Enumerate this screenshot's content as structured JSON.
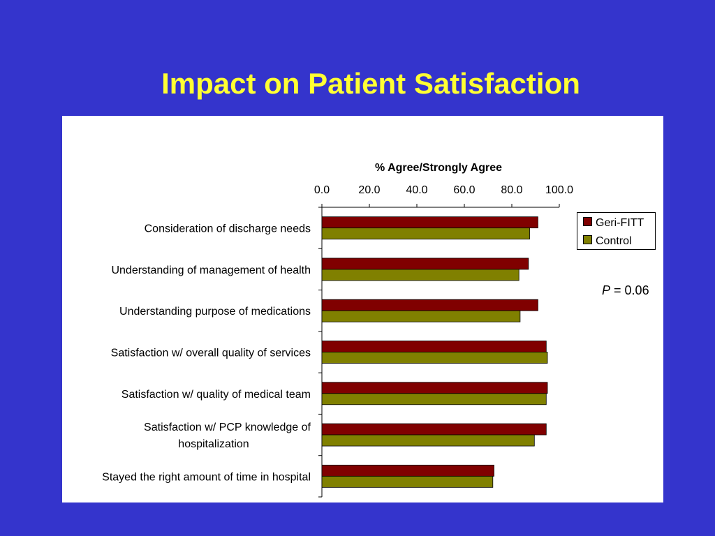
{
  "slide": {
    "title": "Impact on Patient Satisfaction"
  },
  "colors": {
    "background": "#3434cc",
    "title": "#ffff33",
    "geri_fitt": "#800000",
    "control": "#808000"
  },
  "annotation": {
    "p_label": "P",
    "p_rest": "= 0.06"
  },
  "chart_data": {
    "type": "bar",
    "orientation": "horizontal",
    "title": "% Agree/Strongly Agree",
    "categories": [
      [
        "Consideration of discharge needs"
      ],
      [
        "Understanding of management of health"
      ],
      [
        "Understanding purpose of medications"
      ],
      [
        "Satisfaction w/ overall quality of services"
      ],
      [
        "Satisfaction w/ quality of medical team"
      ],
      [
        "Satisfaction w/ PCP knowledge of",
        "hospitalization"
      ],
      [
        "Stayed the right amount of time in hospital"
      ]
    ],
    "series": [
      {
        "name": "Geri-FITT",
        "color": "#800000",
        "values": [
          91,
          87,
          91,
          94.5,
          95,
          94.5,
          72.5
        ]
      },
      {
        "name": "Control",
        "color": "#808000",
        "values": [
          87.5,
          83,
          83.5,
          95,
          94.5,
          89.5,
          72
        ]
      }
    ],
    "xlim": [
      0,
      100
    ],
    "xticks": [
      "0.0",
      "20.0",
      "40.0",
      "60.0",
      "80.0",
      "100.0"
    ],
    "xtick_values": [
      0,
      20,
      40,
      60,
      80,
      100
    ],
    "axis_position": "top",
    "grid": false,
    "legend_position": "right"
  }
}
